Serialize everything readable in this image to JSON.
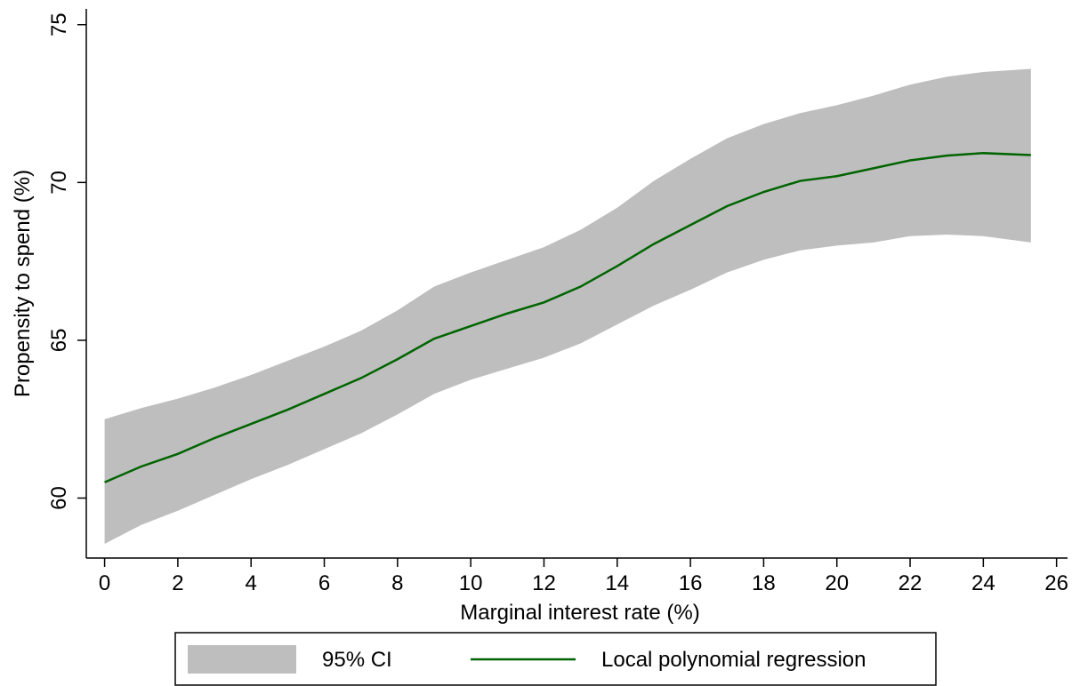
{
  "chart_data": {
    "type": "line",
    "x_label": "Marginal interest rate (%)",
    "y_label": "Propensity to spend (%)",
    "x": [
      0,
      1,
      2,
      3,
      4,
      5,
      6,
      7,
      8,
      9,
      10,
      11,
      12,
      13,
      14,
      15,
      16,
      17,
      18,
      19,
      20,
      21,
      22,
      23,
      24,
      25.3
    ],
    "series": [
      {
        "name": "95% CI",
        "color": "#bebebe",
        "kind": "band",
        "upper": [
          62.5,
          62.85,
          63.15,
          63.5,
          63.9,
          64.35,
          64.8,
          65.3,
          65.95,
          66.7,
          67.15,
          67.55,
          67.95,
          68.5,
          69.2,
          70.05,
          70.75,
          71.4,
          71.85,
          72.2,
          72.45,
          72.75,
          73.1,
          73.35,
          73.5,
          73.6
        ],
        "lower": [
          58.55,
          59.15,
          59.6,
          60.1,
          60.6,
          61.05,
          61.55,
          62.05,
          62.65,
          63.3,
          63.75,
          64.1,
          64.45,
          64.9,
          65.5,
          66.1,
          66.6,
          67.15,
          67.55,
          67.85,
          68.0,
          68.1,
          68.3,
          68.35,
          68.3,
          68.1
        ]
      },
      {
        "name": "Local polynomial regression",
        "color": "#006400",
        "kind": "line",
        "values": [
          60.5,
          61.0,
          61.4,
          61.9,
          62.35,
          62.8,
          63.3,
          63.8,
          64.4,
          65.05,
          65.45,
          65.85,
          66.2,
          66.7,
          67.35,
          68.05,
          68.65,
          69.25,
          69.7,
          70.05,
          70.2,
          70.45,
          70.7,
          70.85,
          70.93,
          70.87
        ]
      }
    ],
    "xlim": [
      -0.5,
      26.3
    ],
    "ylim": [
      58.1,
      75.5
    ],
    "xticks": [
      0,
      2,
      4,
      6,
      8,
      10,
      12,
      14,
      16,
      18,
      20,
      22,
      24,
      26
    ],
    "yticks": [
      60,
      65,
      70,
      75
    ],
    "grid": false,
    "legend": "bottom"
  }
}
